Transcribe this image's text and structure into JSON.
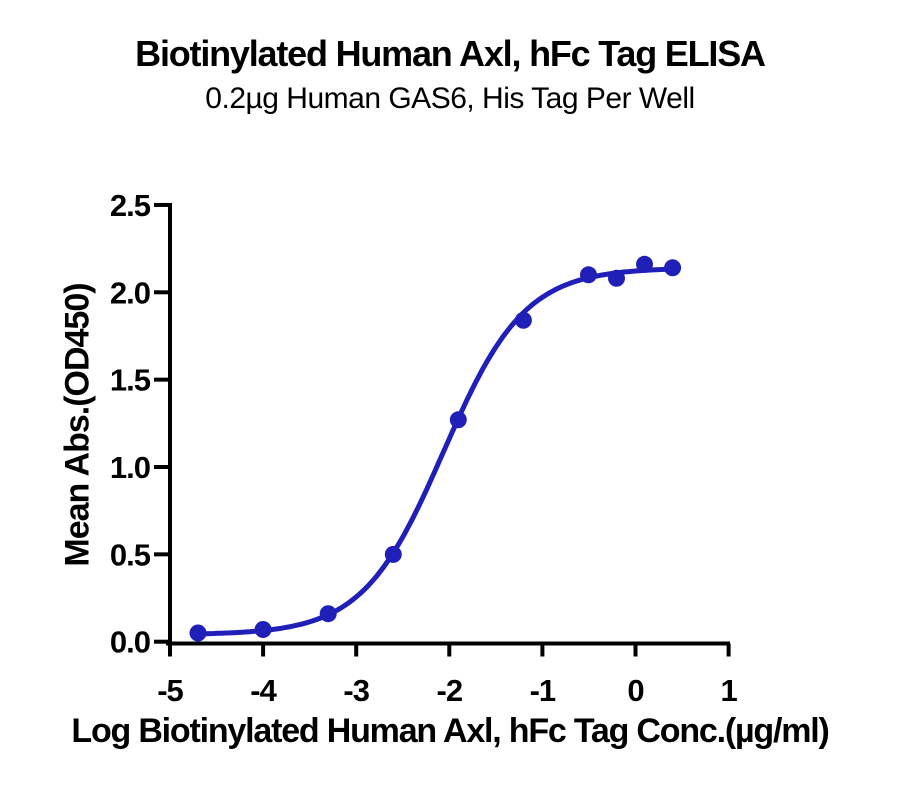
{
  "chart_data": {
    "type": "scatter",
    "title": "Biotinylated Human Axl, hFc Tag ELISA",
    "subtitle": "0.2µg Human GAS6, His Tag Per Well",
    "xlabel": "Log Biotinylated Human Axl, hFc Tag Conc.(µg/ml)",
    "ylabel": "Mean Abs.(OD450)",
    "xlim": [
      -5,
      1
    ],
    "ylim": [
      0.0,
      2.5
    ],
    "grid": false,
    "legend_position": "none",
    "x_ticks": [
      -5,
      -4,
      -3,
      -2,
      -1,
      0,
      1
    ],
    "x_tick_labels": [
      "-5",
      "-4",
      "-3",
      "-2",
      "-1",
      "0",
      "1"
    ],
    "y_ticks": [
      0.0,
      0.5,
      1.0,
      1.5,
      2.0,
      2.5
    ],
    "y_tick_labels": [
      "0.0",
      "0.5",
      "1.0",
      "1.5",
      "2.0",
      "2.5"
    ],
    "series": [
      {
        "name": "Biotinylated Human Axl, hFc Tag",
        "marker": "circle",
        "color": "#2020b8",
        "x": [
          -4.699,
          -4.0,
          -3.301,
          -2.602,
          -1.903,
          -1.204,
          -0.505,
          -0.204,
          0.097,
          0.398
        ],
        "y": [
          0.05,
          0.07,
          0.16,
          0.5,
          1.27,
          1.84,
          2.1,
          2.08,
          2.16,
          2.14
        ]
      }
    ],
    "fit_curve": {
      "model": "4PL-sigmoid",
      "bottom": 0.04,
      "top": 2.14,
      "log_ec50": -2.06,
      "hill": 1.0,
      "x_range": [
        -4.699,
        0.398
      ]
    }
  },
  "colors": {
    "curve": "#2020b8",
    "axis": "#000000",
    "text": "#000000",
    "background": "#ffffff"
  }
}
